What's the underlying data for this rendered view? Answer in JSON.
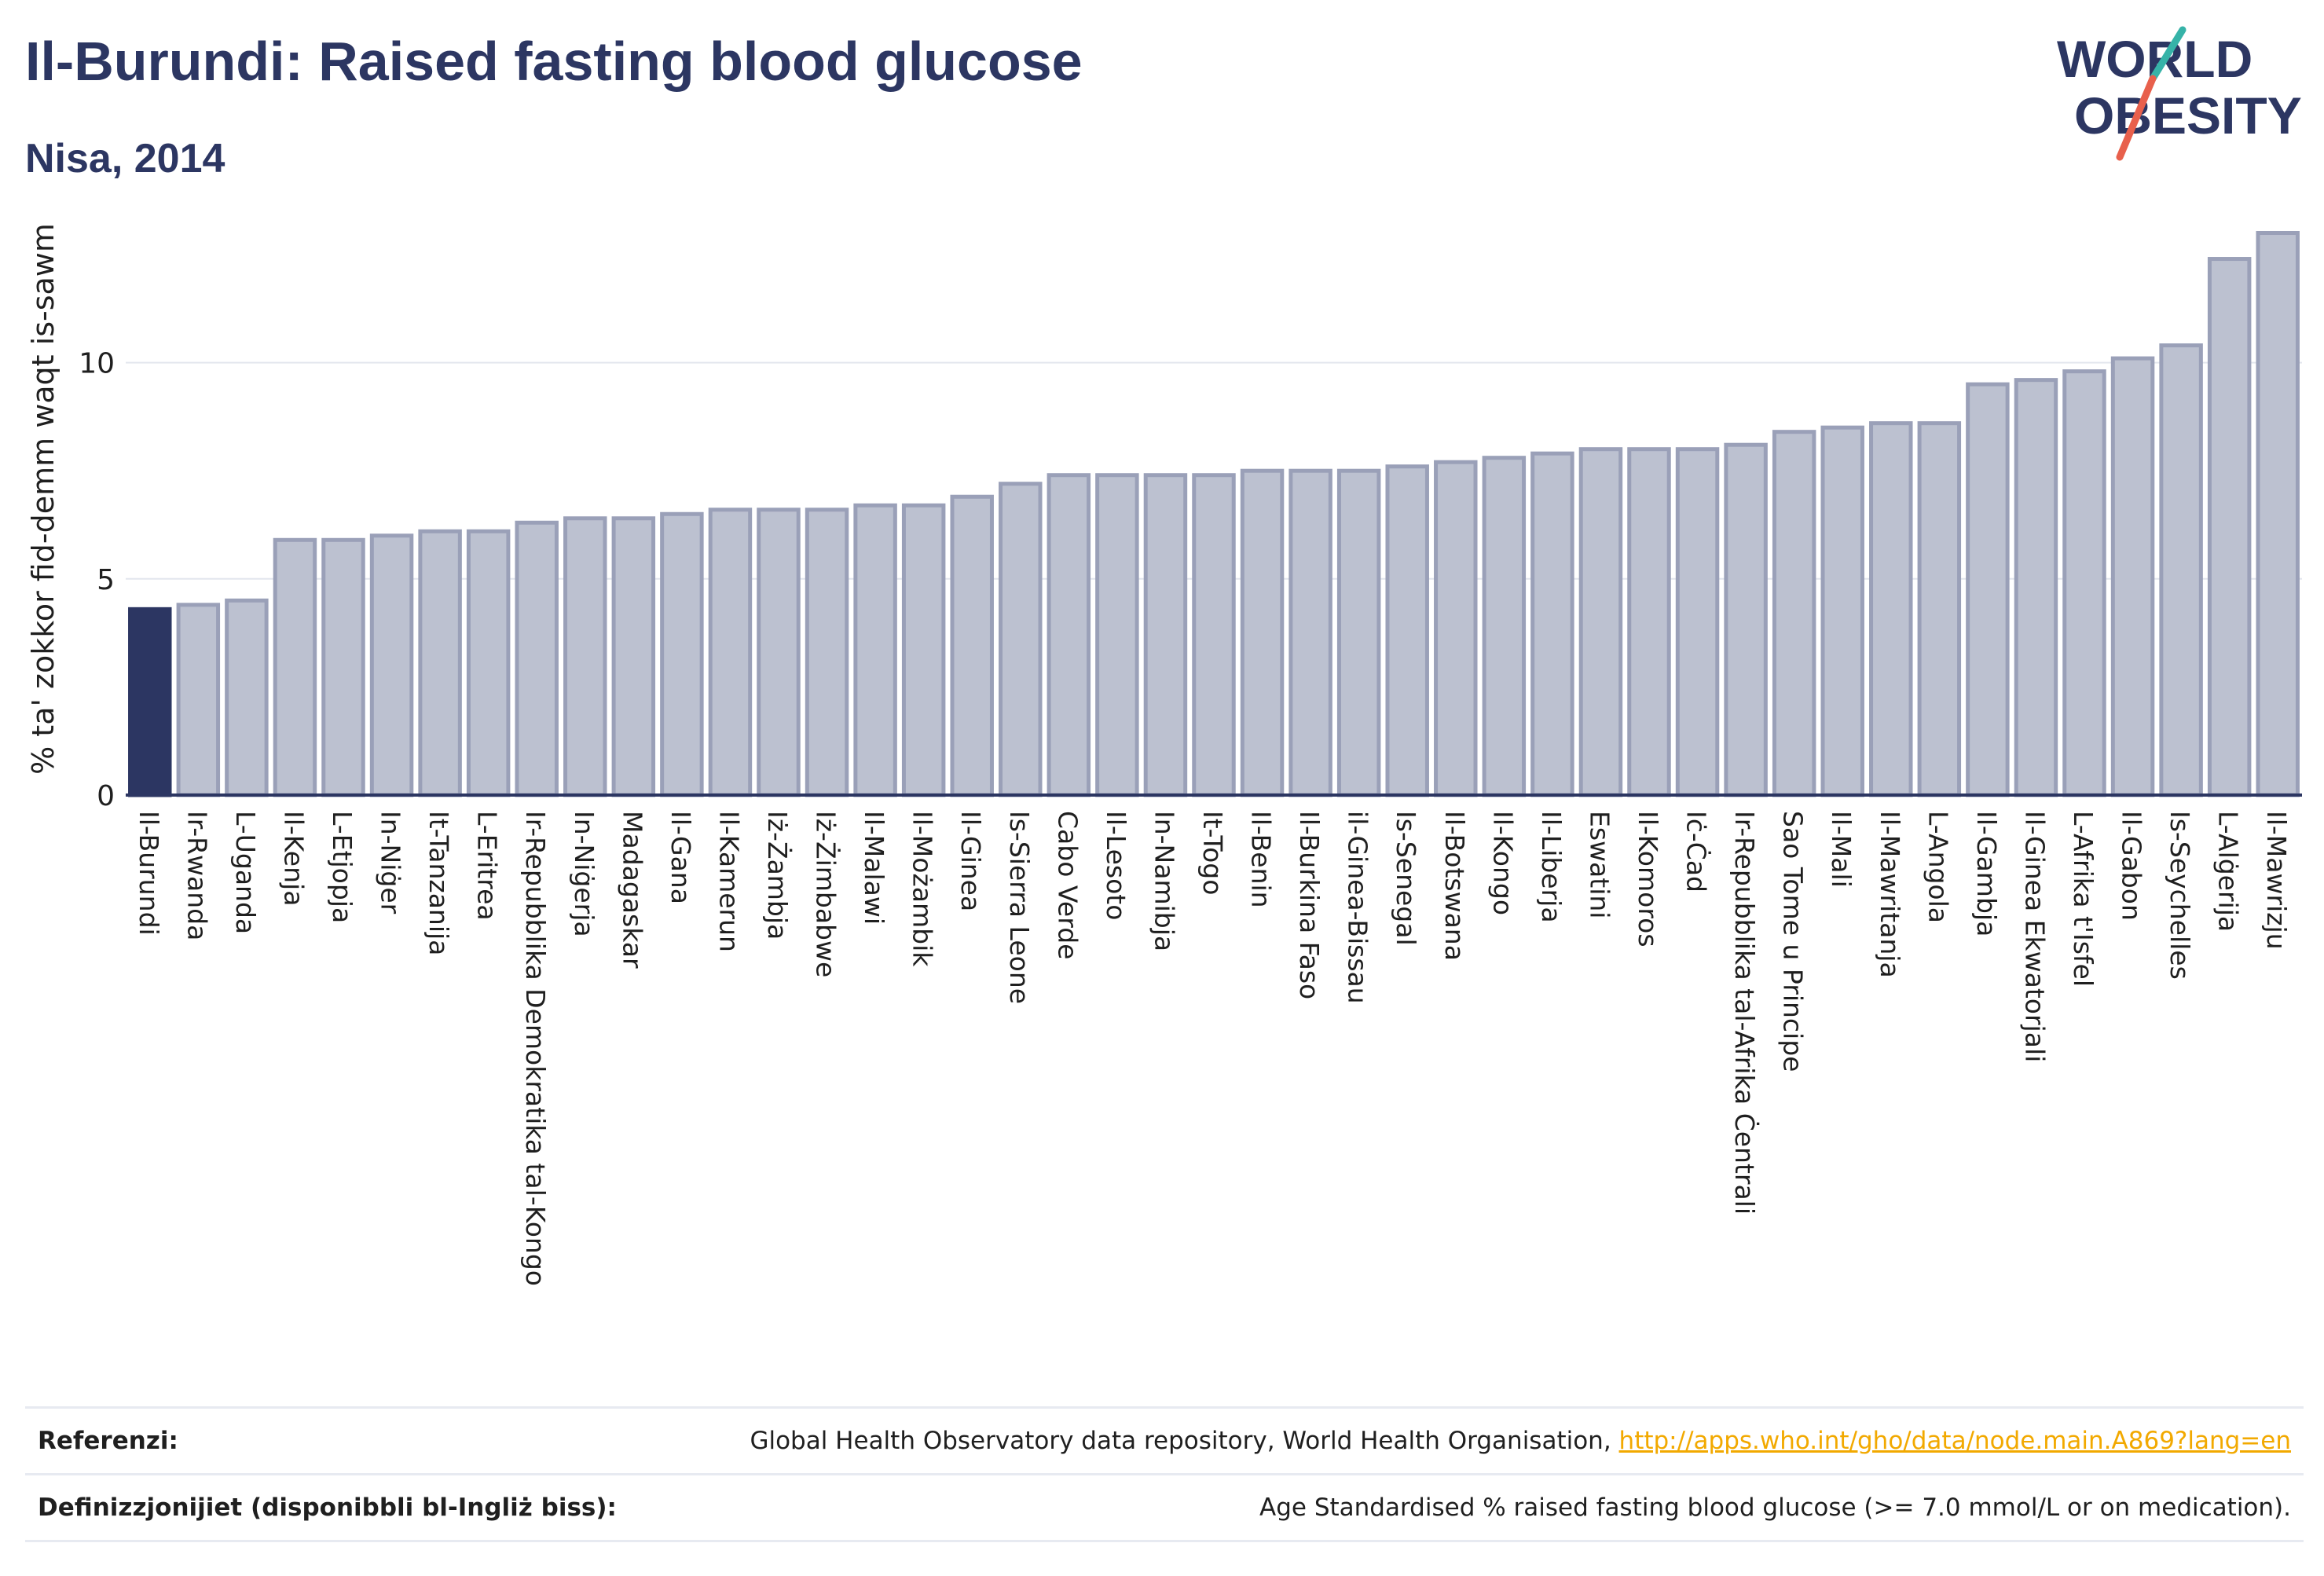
{
  "header": {
    "title": "Il-Burundi: Raised fasting blood glucose",
    "subtitle": "Nisa, 2014"
  },
  "logo": {
    "line1": "WORLD",
    "line2": "OBESITY",
    "accent_colors": [
      "#36b3a8",
      "#e8604c"
    ]
  },
  "colors": {
    "highlight_bar": "#2c3662",
    "other_bars": "#bcc1d0",
    "bar_outline": "#9aa0b8",
    "text_dark": "#2c3662"
  },
  "chart_data": {
    "type": "bar",
    "title": "Il-Burundi: Raised fasting blood glucose",
    "subtitle": "Nisa, 2014",
    "xlabel": "",
    "ylabel": "% ta' zokkor fid-demm waqt is-sawm",
    "ylim": [
      0,
      13.3
    ],
    "yticks": [
      0,
      5,
      10
    ],
    "grid": true,
    "highlight": "Il-Burundi",
    "categories": [
      "Il-Burundi",
      "Ir-Rwanda",
      "L-Uganda",
      "Il-Kenja",
      "L-Etjopja",
      "In-Niġer",
      "It-Tanzanija",
      "L-Eritrea",
      "Ir-Repubblika Demokratika tal-Kongo",
      "In-Niġerja",
      "Madagaskar",
      "Il-Gana",
      "Il-Kamerun",
      "Iż-Żambja",
      "Iż-Żimbabwe",
      "Il-Malawi",
      "Il-Możambik",
      "Il-Ginea",
      "Is-Sierra Leone",
      "Cabo Verde",
      "Il-Lesoto",
      "In-Namibja",
      "It-Togo",
      "Il-Benin",
      "Il-Burkina Faso",
      "il-Ginea-Bissau",
      "Is-Senegal",
      "Il-Botswana",
      "Il-Kongo",
      "Il-Liberja",
      "Eswatini",
      "Il-Komoros",
      "Iċ-Ċad",
      "Ir-Repubblika tal-Afrika Ċentrali",
      "Sao Tome u Principe",
      "Il-Mali",
      "Il-Mawritanja",
      "L-Angola",
      "Il-Gambja",
      "Il-Ginea Ekwatorjali",
      "L-Afrika t'Isfel",
      "Il-Gabon",
      "Is-Seychelles",
      "L-Alġerija",
      "Il-Mawrizju"
    ],
    "values": [
      4.3,
      4.4,
      4.5,
      5.9,
      5.9,
      6.0,
      6.1,
      6.1,
      6.3,
      6.4,
      6.4,
      6.5,
      6.6,
      6.6,
      6.6,
      6.7,
      6.7,
      6.9,
      7.2,
      7.4,
      7.4,
      7.4,
      7.4,
      7.5,
      7.5,
      7.5,
      7.6,
      7.7,
      7.8,
      7.9,
      8.0,
      8.0,
      8.0,
      8.1,
      8.4,
      8.5,
      8.6,
      8.6,
      9.5,
      9.6,
      9.8,
      10.1,
      10.4,
      12.4,
      13.0
    ]
  },
  "footer": {
    "references_label": "Referenzi:",
    "references_text": "Global Health Observatory data repository, World Health Organisation, ",
    "references_link": "http://apps.who.int/gho/data/node.main.A869?lang=en",
    "definitions_label": "Definizzjonijiet (disponibbli bl-Ingliż biss):",
    "definitions_text": "Age Standardised % raised fasting blood glucose (>= 7.0 mmol/L or on medication)."
  }
}
